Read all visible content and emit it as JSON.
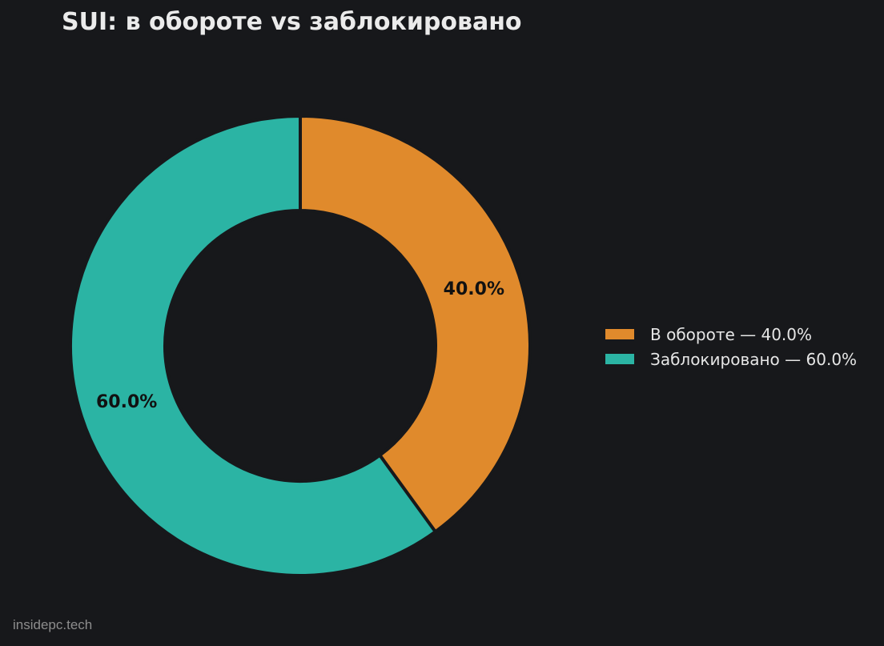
{
  "chart_data": {
    "type": "pie",
    "title": "SUI: в обороте vs заблокировано",
    "donut": true,
    "start_angle_deg": 90,
    "direction": "clockwise",
    "slices": [
      {
        "label": "В обороте — 40.0%",
        "value": 40.0,
        "value_label": "40.0%",
        "color": "#e08a2c"
      },
      {
        "label": "Заблокировано — 60.0%",
        "value": 60.0,
        "value_label": "60.0%",
        "color": "#2bb4a4"
      }
    ],
    "legend_placement": "right"
  },
  "watermark": "insidepc.tech",
  "colors": {
    "background": "#17181b",
    "separator": "#17181b"
  }
}
